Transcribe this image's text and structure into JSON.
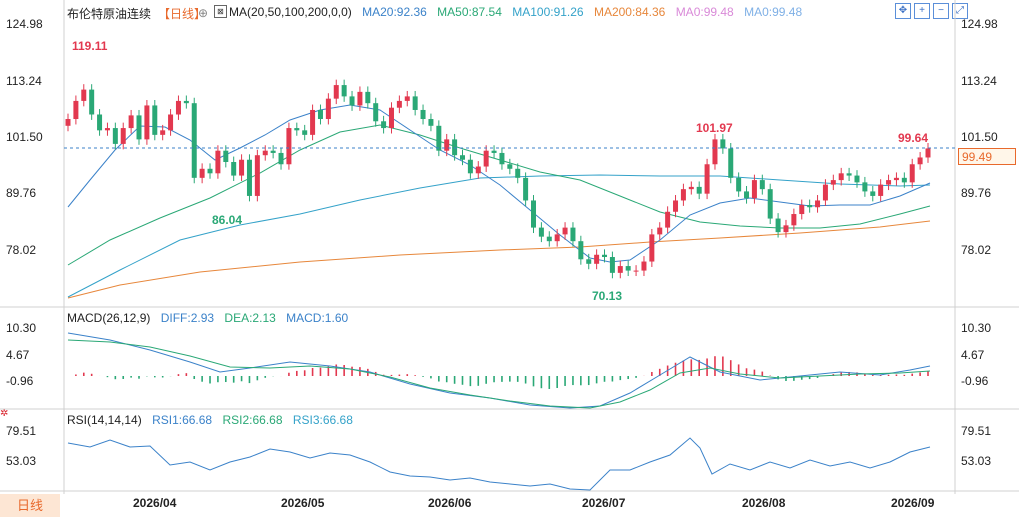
{
  "header": {
    "title": "布伦特原油连续",
    "timeframe": "【日线】",
    "fullscreen_icon": "circle-plus-icon",
    "switch_icon": "square-icon"
  },
  "main_legend": {
    "ma_params": "MA(20,50,100,200,0,0)",
    "items": [
      {
        "label": "MA20:92.36",
        "color": "#3b82c9"
      },
      {
        "label": "MA50:87.54",
        "color": "#2aa876"
      },
      {
        "label": "MA100:91.26",
        "color": "#34a2c9"
      },
      {
        "label": "MA200:84.36",
        "color": "#e7873b"
      },
      {
        "label": "MA0:99.48",
        "color": "#d98ad8"
      },
      {
        "label": "MA0:99.48",
        "color": "#7fb0e6"
      }
    ]
  },
  "macd_legend": {
    "name": "MACD(26,12,9)",
    "items": [
      {
        "label": "DIFF:2.93",
        "color": "#3b82c9"
      },
      {
        "label": "DEA:2.13",
        "color": "#2aa876"
      },
      {
        "label": "MACD:1.60",
        "color": "#3b82c9"
      }
    ]
  },
  "rsi_legend": {
    "name": "RSI(14,14,14)",
    "items": [
      {
        "label": "RSI1:66.68",
        "color": "#3b82c9"
      },
      {
        "label": "RSI2:66.68",
        "color": "#2aa876"
      },
      {
        "label": "RSI3:66.68",
        "color": "#34a2c9"
      }
    ]
  },
  "axes": {
    "price_ticks": [
      "124.98",
      "113.24",
      "101.50",
      "89.76",
      "78.02"
    ],
    "macd_ticks": [
      "10.30",
      "4.67",
      "-0.96"
    ],
    "rsi_ticks": [
      "79.51",
      "53.03"
    ],
    "x_labels": [
      "2026/04",
      "2026/05",
      "2026/06",
      "2026/07",
      "2026/08",
      "2026/09"
    ]
  },
  "annotations": {
    "high_label": "119.11",
    "low_label_1": "86.04",
    "low_label_2": "70.13",
    "peak_label": "101.97",
    "last_high_label": "99.64",
    "last_price": "99.49"
  },
  "toolbar": {
    "icons": [
      "move-icon",
      "zoom-in-icon",
      "zoom-out-icon",
      "expand-icon"
    ]
  },
  "period_tab": {
    "label": "日线"
  },
  "chart_data": {
    "type": "candlestick",
    "title": "布伦特原油连续",
    "ylim": [
      66,
      127
    ],
    "colors": {
      "up": "#e2384f",
      "down": "#2aa876",
      "ref_line": "#3b82c9"
    },
    "reference_price": 99.49,
    "candles_close": [
      106.0,
      110.0,
      112.5,
      107.0,
      103.5,
      104.0,
      100.5,
      104.0,
      106.8,
      101.5,
      109.0,
      102.5,
      103.5,
      107.0,
      110.0,
      109.5,
      93.0,
      95.0,
      94.0,
      99.0,
      96.5,
      93.5,
      97.0,
      89.0,
      98.0,
      99.0,
      98.5,
      96.0,
      104.0,
      103.5,
      102.5,
      108.0,
      106.0,
      110.5,
      113.5,
      111.0,
      109.0,
      112.0,
      109.5,
      105.5,
      104.0,
      108.5,
      110.0,
      111.0,
      108.0,
      106.0,
      104.5,
      99.0,
      101.5,
      98.0,
      97.0,
      94.0,
      95.5,
      99.0,
      98.5,
      96.0,
      95.0,
      93.0,
      88.0,
      82.0,
      80.0,
      79.0,
      80.5,
      82.0,
      79.0,
      75.0,
      74.0,
      76.0,
      75.5,
      72.0,
      73.5,
      72.5,
      72.5,
      74.5,
      80.5,
      82.0,
      85.5,
      88.0,
      90.5,
      91.0,
      89.5,
      96.0,
      101.5,
      99.5,
      93.0,
      90.0,
      88.5,
      92.5,
      90.5,
      84.0,
      81.0,
      82.5,
      85.0,
      87.0,
      86.5,
      88.0,
      91.5,
      92.5,
      94.0,
      93.5,
      92.0,
      90.0,
      89.0,
      91.5,
      92.5,
      93.0,
      92.0,
      96.0,
      97.5,
      99.5
    ]
  }
}
